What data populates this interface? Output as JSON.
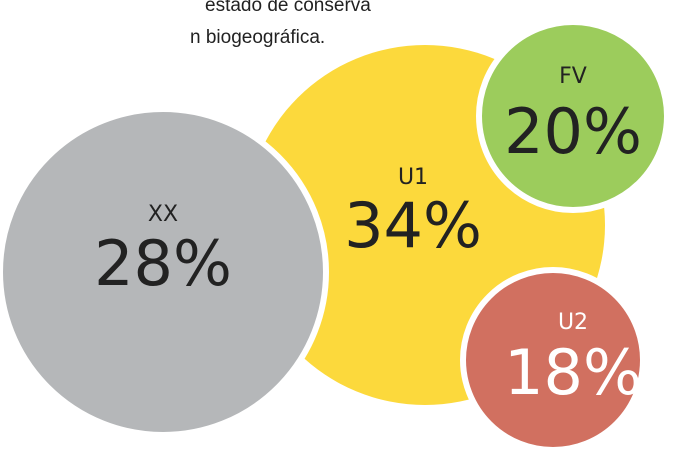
{
  "chart_data": {
    "type": "bubble",
    "text_lines": [
      "estado de conserva",
      "n biogeográfica."
    ],
    "categories": [
      "XX",
      "U1",
      "FV",
      "U2"
    ],
    "values": [
      28,
      34,
      20,
      18
    ],
    "value_labels": [
      "28%",
      "34%",
      "20%",
      "18%"
    ],
    "colors": [
      "#b5b7b9",
      "#fcd93c",
      "#9ccc5c",
      "#d17060"
    ]
  }
}
